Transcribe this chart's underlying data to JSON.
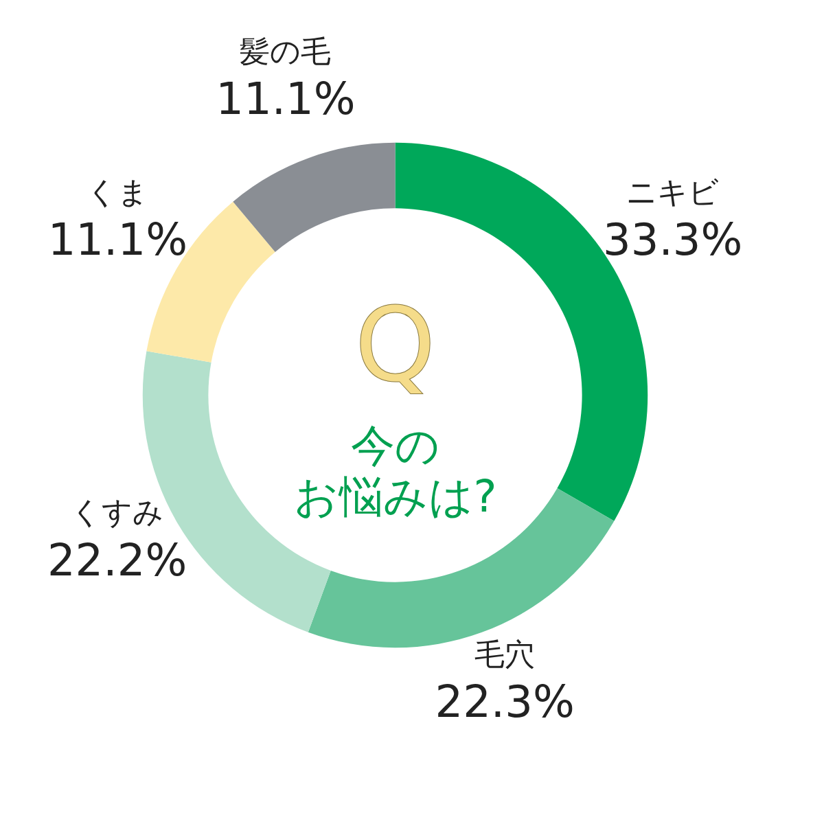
{
  "chart_data": {
    "type": "donut",
    "title": "Q",
    "annotations": [
      "今の",
      "お悩みは?"
    ],
    "categories": [
      "ニキビ",
      "毛穴",
      "くすみ",
      "くま",
      "髪の毛"
    ],
    "values": [
      33.3,
      22.3,
      22.2,
      11.1,
      11.1
    ],
    "value_labels": [
      "33.3%",
      "22.3%",
      "22.2%",
      "11.1%",
      "11.1%"
    ],
    "colors": [
      "#00a85a",
      "#66c49a",
      "#b3e0cc",
      "#fde9a9",
      "#8a8e94"
    ]
  }
}
